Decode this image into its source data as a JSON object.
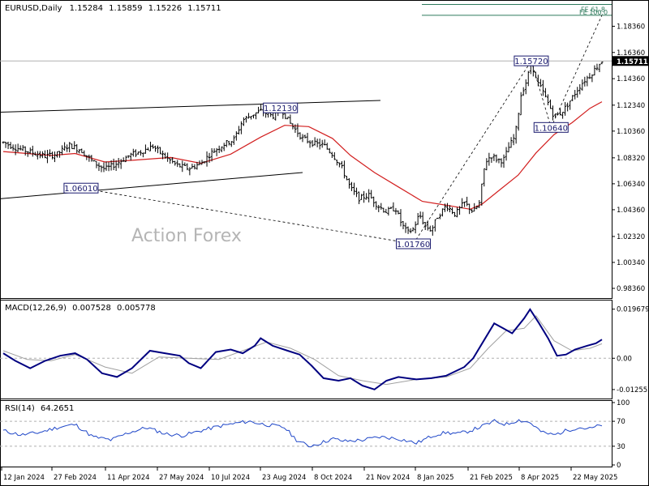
{
  "chart_data": [
    {
      "type": "candlestick",
      "header": {
        "symbol": "EURUSD,Daily",
        "ohlc": [
          "1.15284",
          "1.15859",
          "1.15226",
          "1.15711"
        ]
      },
      "watermark": "Action Forex",
      "ylim": [
        0.9768,
        1.2024
      ],
      "y_ticks": [
        "1.18360",
        "1.16360",
        "1.14360",
        "1.12340",
        "1.10360",
        "1.08320",
        "1.06340",
        "1.04360",
        "1.02320",
        "1.00340",
        "0.98360"
      ],
      "current_price": "1.15711",
      "fe_labels": [
        "FE 61.8",
        "FE 100.0"
      ],
      "fe_levels": [
        1.2002,
        1.192
      ],
      "x_ticks": [
        "12 Jan 2024",
        "27 Feb 2024",
        "11 Apr 2024",
        "27 May 2024",
        "10 Jul 2024",
        "23 Aug 2024",
        "8 Oct 2024",
        "21 Nov 2024",
        "8 Jan 2025",
        "21 Feb 2025",
        "8 Apr 2025",
        "22 May 2025"
      ],
      "price_path": [
        [
          0,
          1.095
        ],
        [
          0.02,
          1.091
        ],
        [
          0.05,
          1.087
        ],
        [
          0.07,
          1.0845
        ],
        [
          0.09,
          1.086
        ],
        [
          0.11,
          1.093
        ],
        [
          0.13,
          1.089
        ],
        [
          0.15,
          1.08
        ],
        [
          0.17,
          1.0745
        ],
        [
          0.19,
          1.079
        ],
        [
          0.21,
          1.085
        ],
        [
          0.23,
          1.088
        ],
        [
          0.25,
          1.092
        ],
        [
          0.27,
          1.084
        ],
        [
          0.29,
          1.0775
        ],
        [
          0.31,
          1.075
        ],
        [
          0.33,
          1.079
        ],
        [
          0.35,
          1.088
        ],
        [
          0.37,
          1.094
        ],
        [
          0.385,
          1.097
        ],
        [
          0.4,
          1.112
        ],
        [
          0.415,
          1.116
        ],
        [
          0.43,
          1.119
        ],
        [
          0.45,
          1.115
        ],
        [
          0.465,
          1.12
        ],
        [
          0.48,
          1.109
        ],
        [
          0.5,
          1.098
        ],
        [
          0.52,
          1.094
        ],
        [
          0.535,
          1.093
        ],
        [
          0.55,
          1.086
        ],
        [
          0.565,
          1.076
        ],
        [
          0.58,
          1.06
        ],
        [
          0.595,
          1.052
        ],
        [
          0.61,
          1.055
        ],
        [
          0.625,
          1.047
        ],
        [
          0.64,
          1.042
        ],
        [
          0.655,
          1.045
        ],
        [
          0.665,
          1.033
        ],
        [
          0.675,
          1.026
        ],
        [
          0.685,
          1.029
        ],
        [
          0.695,
          1.04
        ],
        [
          0.705,
          1.031
        ],
        [
          0.715,
          1.028
        ],
        [
          0.725,
          1.038
        ],
        [
          0.74,
          1.047
        ],
        [
          0.755,
          1.04
        ],
        [
          0.77,
          1.049
        ],
        [
          0.785,
          1.042
        ],
        [
          0.795,
          1.048
        ],
        [
          0.805,
          1.08
        ],
        [
          0.815,
          1.085
        ],
        [
          0.825,
          1.082
        ],
        [
          0.835,
          1.081
        ],
        [
          0.845,
          1.092
        ],
        [
          0.855,
          1.1
        ],
        [
          0.865,
          1.132
        ],
        [
          0.875,
          1.143
        ],
        [
          0.882,
          1.157
        ],
        [
          0.89,
          1.142
        ],
        [
          0.9,
          1.135
        ],
        [
          0.91,
          1.125
        ],
        [
          0.92,
          1.115
        ],
        [
          0.93,
          1.117
        ],
        [
          0.94,
          1.122
        ],
        [
          0.95,
          1.129
        ],
        [
          0.96,
          1.136
        ],
        [
          0.97,
          1.142
        ],
        [
          0.98,
          1.146
        ],
        [
          0.99,
          1.152
        ],
        [
          1.0,
          1.1571
        ]
      ],
      "moving_average": [
        [
          0,
          1.088
        ],
        [
          0.08,
          1.085
        ],
        [
          0.12,
          1.0865
        ],
        [
          0.17,
          1.08
        ],
        [
          0.22,
          1.0815
        ],
        [
          0.28,
          1.0835
        ],
        [
          0.33,
          1.079
        ],
        [
          0.38,
          1.086
        ],
        [
          0.43,
          1.099
        ],
        [
          0.47,
          1.108
        ],
        [
          0.51,
          1.107
        ],
        [
          0.55,
          1.098
        ],
        [
          0.58,
          1.085
        ],
        [
          0.62,
          1.072
        ],
        [
          0.66,
          1.061
        ],
        [
          0.7,
          1.05
        ],
        [
          0.74,
          1.047
        ],
        [
          0.78,
          1.044
        ],
        [
          0.8,
          1.048
        ],
        [
          0.83,
          1.059
        ],
        [
          0.86,
          1.07
        ],
        [
          0.89,
          1.087
        ],
        [
          0.92,
          1.101
        ],
        [
          0.95,
          1.11
        ],
        [
          0.98,
          1.121
        ],
        [
          1.0,
          1.126
        ]
      ],
      "price_labels": [
        {
          "text": "1.06010",
          "x": 0.13,
          "y": 1.0601
        },
        {
          "text": "1.12130",
          "x": 0.463,
          "y": 1.1213
        },
        {
          "text": "1.01760",
          "x": 0.685,
          "y": 1.0176
        },
        {
          "text": "1.15720",
          "x": 0.882,
          "y": 1.1572
        },
        {
          "text": "1.10640",
          "x": 0.915,
          "y": 1.1064
        }
      ],
      "channel_upper": [
        [
          0.0,
          1.118
        ],
        [
          0.63,
          1.127
        ]
      ],
      "channel_lower": [
        [
          0.0,
          1.052
        ],
        [
          0.5,
          1.072
        ]
      ],
      "fib_projection": [
        [
          0.13,
          1.0601
        ],
        [
          0.685,
          1.0176
        ],
        [
          0.882,
          1.1572
        ],
        [
          0.915,
          1.1064
        ],
        [
          1.0,
          1.192
        ]
      ]
    },
    {
      "type": "line",
      "indicator": "MACD(12,26,9)",
      "values_text": [
        "0.007528",
        "0.005778"
      ],
      "ylim": [
        -0.0155,
        0.0225
      ],
      "y_ticks": [
        "0.019679",
        "0.00",
        "-0.012552"
      ],
      "macd": [
        [
          0,
          0.002
        ],
        [
          0.02,
          -0.001
        ],
        [
          0.045,
          -0.004
        ],
        [
          0.07,
          -0.001
        ],
        [
          0.095,
          0.001
        ],
        [
          0.12,
          0.002
        ],
        [
          0.14,
          -0.0005
        ],
        [
          0.165,
          -0.006
        ],
        [
          0.19,
          -0.0075
        ],
        [
          0.215,
          -0.004
        ],
        [
          0.245,
          0.003
        ],
        [
          0.27,
          0.002
        ],
        [
          0.295,
          0.001
        ],
        [
          0.31,
          -0.002
        ],
        [
          0.33,
          -0.004
        ],
        [
          0.355,
          0.0025
        ],
        [
          0.38,
          0.0035
        ],
        [
          0.4,
          0.002
        ],
        [
          0.42,
          0.005
        ],
        [
          0.43,
          0.008
        ],
        [
          0.45,
          0.005
        ],
        [
          0.475,
          0.003
        ],
        [
          0.495,
          0.0015
        ],
        [
          0.515,
          -0.003
        ],
        [
          0.535,
          -0.008
        ],
        [
          0.56,
          -0.009
        ],
        [
          0.58,
          -0.008
        ],
        [
          0.6,
          -0.011
        ],
        [
          0.62,
          -0.0125
        ],
        [
          0.64,
          -0.009
        ],
        [
          0.66,
          -0.0075
        ],
        [
          0.69,
          -0.0085
        ],
        [
          0.715,
          -0.008
        ],
        [
          0.74,
          -0.007
        ],
        [
          0.77,
          -0.0035
        ],
        [
          0.785,
          0.0
        ],
        [
          0.8,
          0.006
        ],
        [
          0.82,
          0.014
        ],
        [
          0.835,
          0.012
        ],
        [
          0.85,
          0.01
        ],
        [
          0.87,
          0.016
        ],
        [
          0.88,
          0.0196
        ],
        [
          0.895,
          0.014
        ],
        [
          0.91,
          0.008
        ],
        [
          0.925,
          0.001
        ],
        [
          0.94,
          0.0015
        ],
        [
          0.955,
          0.0035
        ],
        [
          0.975,
          0.005
        ],
        [
          0.99,
          0.006
        ],
        [
          1.0,
          0.0075
        ]
      ],
      "signal": [
        [
          0,
          0.003
        ],
        [
          0.04,
          -0.0005
        ],
        [
          0.08,
          -0.001
        ],
        [
          0.12,
          0.0015
        ],
        [
          0.17,
          -0.0035
        ],
        [
          0.215,
          -0.006
        ],
        [
          0.26,
          0.0005
        ],
        [
          0.31,
          0.0
        ],
        [
          0.36,
          -0.0005
        ],
        [
          0.4,
          0.003
        ],
        [
          0.44,
          0.0065
        ],
        [
          0.48,
          0.004
        ],
        [
          0.52,
          -0.0005
        ],
        [
          0.56,
          -0.007
        ],
        [
          0.6,
          -0.009
        ],
        [
          0.64,
          -0.0105
        ],
        [
          0.69,
          -0.0085
        ],
        [
          0.74,
          -0.0075
        ],
        [
          0.78,
          -0.004
        ],
        [
          0.81,
          0.004
        ],
        [
          0.84,
          0.011
        ],
        [
          0.87,
          0.012
        ],
        [
          0.89,
          0.017
        ],
        [
          0.92,
          0.007
        ],
        [
          0.95,
          0.003
        ],
        [
          0.98,
          0.004
        ],
        [
          1.0,
          0.0058
        ]
      ]
    },
    {
      "type": "line",
      "indicator": "RSI(14)",
      "value_text": "64.2651",
      "ylim": [
        0,
        100
      ],
      "y_ticks": [
        "100",
        "70",
        "30",
        "0"
      ],
      "rsi": [
        [
          0,
          55
        ],
        [
          0.03,
          48
        ],
        [
          0.06,
          52
        ],
        [
          0.09,
          60
        ],
        [
          0.12,
          65
        ],
        [
          0.15,
          45
        ],
        [
          0.18,
          40
        ],
        [
          0.21,
          52
        ],
        [
          0.24,
          60
        ],
        [
          0.27,
          50
        ],
        [
          0.3,
          47
        ],
        [
          0.33,
          55
        ],
        [
          0.36,
          62
        ],
        [
          0.39,
          67
        ],
        [
          0.41,
          70
        ],
        [
          0.43,
          66
        ],
        [
          0.45,
          63
        ],
        [
          0.47,
          60
        ],
        [
          0.49,
          40
        ],
        [
          0.51,
          30
        ],
        [
          0.53,
          35
        ],
        [
          0.55,
          42
        ],
        [
          0.57,
          38
        ],
        [
          0.6,
          40
        ],
        [
          0.63,
          45
        ],
        [
          0.66,
          42
        ],
        [
          0.69,
          35
        ],
        [
          0.72,
          48
        ],
        [
          0.74,
          52
        ],
        [
          0.76,
          50
        ],
        [
          0.78,
          55
        ],
        [
          0.8,
          62
        ],
        [
          0.82,
          70
        ],
        [
          0.84,
          65
        ],
        [
          0.86,
          72
        ],
        [
          0.88,
          68
        ],
        [
          0.9,
          52
        ],
        [
          0.92,
          48
        ],
        [
          0.94,
          55
        ],
        [
          0.96,
          60
        ],
        [
          0.98,
          58
        ],
        [
          1.0,
          64.27
        ]
      ]
    }
  ]
}
